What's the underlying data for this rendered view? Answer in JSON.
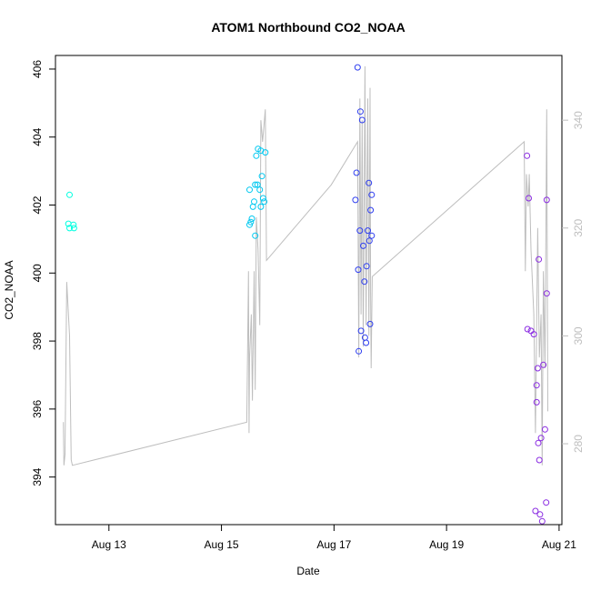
{
  "chart_data": {
    "type": "scatter",
    "title": "ATOM1 Northbound CO2_NOAA",
    "xlabel": "Date",
    "ylabel": "CO2_NOAA",
    "xlim": [
      12.05,
      21.05
    ],
    "ylim": [
      392.6,
      406.4
    ],
    "x_ticks": [
      {
        "value": 13,
        "label": "Aug 13"
      },
      {
        "value": 15,
        "label": "Aug 15"
      },
      {
        "value": 17,
        "label": "Aug 17"
      },
      {
        "value": 19,
        "label": "Aug 19"
      },
      {
        "value": 21,
        "label": "Aug 21"
      }
    ],
    "y_ticks": [
      394,
      396,
      398,
      400,
      402,
      404,
      406
    ],
    "y2_ticks": [
      280,
      300,
      320,
      340
    ],
    "y2lim": [
      265,
      352
    ],
    "grid": false,
    "legend": "none",
    "colors": {
      "background": "#ffffff",
      "axis": "#000000",
      "secondary_axis": "#bebebe",
      "line": "#bebebe"
    },
    "series": [
      {
        "color": "#00FFE0",
        "points": [
          [
            12.3,
            402.3
          ],
          [
            12.28,
            401.45
          ],
          [
            12.3,
            401.32
          ],
          [
            12.37,
            401.42
          ],
          [
            12.38,
            401.32
          ]
        ]
      },
      {
        "color": "#00C8F0",
        "points": [
          [
            15.5,
            402.45
          ],
          [
            15.5,
            401.42
          ],
          [
            15.52,
            401.5
          ],
          [
            15.54,
            401.6
          ],
          [
            15.56,
            401.95
          ],
          [
            15.58,
            402.1
          ],
          [
            15.6,
            402.6
          ],
          [
            15.6,
            401.1
          ],
          [
            15.62,
            403.45
          ],
          [
            15.64,
            402.6
          ],
          [
            15.65,
            403.65
          ],
          [
            15.68,
            402.45
          ],
          [
            15.7,
            403.6
          ],
          [
            15.7,
            401.95
          ],
          [
            15.72,
            402.85
          ],
          [
            15.74,
            402.2
          ],
          [
            15.76,
            402.1
          ],
          [
            15.78,
            403.55
          ]
        ]
      },
      {
        "color": "#2F3FF0",
        "points": [
          [
            17.38,
            402.15
          ],
          [
            17.4,
            402.95
          ],
          [
            17.42,
            406.05
          ],
          [
            17.43,
            400.1
          ],
          [
            17.44,
            397.7
          ],
          [
            17.46,
            401.25
          ],
          [
            17.47,
            404.75
          ],
          [
            17.48,
            398.3
          ],
          [
            17.5,
            404.5
          ],
          [
            17.52,
            400.8
          ],
          [
            17.54,
            399.75
          ],
          [
            17.55,
            398.1
          ],
          [
            17.57,
            397.95
          ],
          [
            17.58,
            400.2
          ],
          [
            17.6,
            401.25
          ],
          [
            17.62,
            402.65
          ],
          [
            17.63,
            400.95
          ],
          [
            17.64,
            398.5
          ],
          [
            17.65,
            401.85
          ],
          [
            17.67,
            402.3
          ],
          [
            17.67,
            401.1
          ]
        ]
      },
      {
        "color": "#8A2BE2",
        "points": [
          [
            20.43,
            403.45
          ],
          [
            20.44,
            398.35
          ],
          [
            20.46,
            402.2
          ],
          [
            20.5,
            398.3
          ],
          [
            20.55,
            398.2
          ],
          [
            20.58,
            393.0
          ],
          [
            20.6,
            396.2
          ],
          [
            20.6,
            396.7
          ],
          [
            20.62,
            397.2
          ],
          [
            20.63,
            395.0
          ],
          [
            20.64,
            400.4
          ],
          [
            20.65,
            394.5
          ],
          [
            20.66,
            392.9
          ],
          [
            20.68,
            395.15
          ],
          [
            20.7,
            392.7
          ],
          [
            20.72,
            397.3
          ],
          [
            20.75,
            395.4
          ],
          [
            20.77,
            393.25
          ],
          [
            20.78,
            399.4
          ],
          [
            20.78,
            402.15
          ]
        ]
      }
    ],
    "secondary_line": [
      [
        12.19,
        284
      ],
      [
        12.2,
        276
      ],
      [
        12.22,
        278
      ],
      [
        12.25,
        310
      ],
      [
        12.3,
        300
      ],
      [
        12.33,
        277
      ],
      [
        12.35,
        276
      ],
      [
        15.45,
        284
      ],
      [
        15.48,
        312
      ],
      [
        15.49,
        282
      ],
      [
        15.5,
        296
      ],
      [
        15.53,
        304
      ],
      [
        15.55,
        288
      ],
      [
        15.58,
        312
      ],
      [
        15.6,
        290
      ],
      [
        15.62,
        322
      ],
      [
        15.65,
        316
      ],
      [
        15.68,
        302
      ],
      [
        15.7,
        340
      ],
      [
        15.73,
        336
      ],
      [
        15.78,
        342
      ],
      [
        15.8,
        314
      ],
      [
        16.95,
        328
      ],
      [
        17.42,
        336
      ],
      [
        17.44,
        296
      ],
      [
        17.46,
        344
      ],
      [
        17.48,
        304
      ],
      [
        17.5,
        340
      ],
      [
        17.52,
        298
      ],
      [
        17.55,
        350
      ],
      [
        17.57,
        302
      ],
      [
        17.6,
        344
      ],
      [
        17.62,
        300
      ],
      [
        17.64,
        346
      ],
      [
        17.65,
        308
      ],
      [
        17.66,
        294
      ],
      [
        17.68,
        311
      ],
      [
        20.38,
        336
      ],
      [
        20.4,
        312
      ],
      [
        20.42,
        330
      ],
      [
        20.45,
        324
      ],
      [
        20.47,
        330
      ],
      [
        20.5,
        316
      ],
      [
        20.55,
        304
      ],
      [
        20.58,
        282
      ],
      [
        20.62,
        320
      ],
      [
        20.65,
        296
      ],
      [
        20.68,
        304
      ],
      [
        20.7,
        276
      ],
      [
        20.72,
        312
      ],
      [
        20.75,
        294
      ],
      [
        20.78,
        342
      ],
      [
        20.8,
        286
      ]
    ]
  }
}
